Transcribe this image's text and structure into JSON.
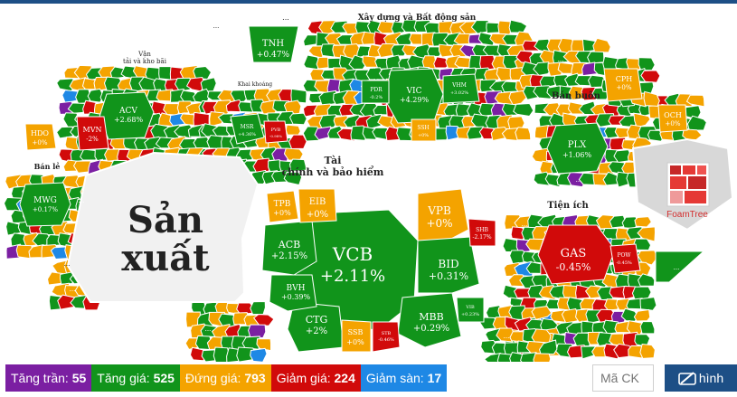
{
  "groups": {
    "xay_dung": "Xây dựng và Bất động sản",
    "van_tai_1": "Vận",
    "van_tai_2": "tải và kho bãi",
    "khai_khoang": "Khai khoáng",
    "ban_buon": "Bán buôn",
    "ban_le": "Bán lẻ",
    "tai_chinh_1": "Tài",
    "tai_chinh_2": "chính và bảo hiểm",
    "tien_ich": "Tiện ích",
    "san_xuat_1": "Sản",
    "san_xuat_2": "xuất"
  },
  "ellipsis": "...",
  "tickers": {
    "vcb": {
      "code": "VCB",
      "change": "+2.11%"
    },
    "vpb": {
      "code": "VPB",
      "change": "+0%"
    },
    "bid": {
      "code": "BID",
      "change": "+0.31%"
    },
    "mbb": {
      "code": "MBB",
      "change": "+0.29%"
    },
    "acb": {
      "code": "ACB",
      "change": "+2.15%"
    },
    "ctg": {
      "code": "CTG",
      "change": "+2%"
    },
    "bvh": {
      "code": "BVH",
      "change": "+0.39%"
    },
    "tpb": {
      "code": "TPB",
      "change": "+0%"
    },
    "eib": {
      "code": "EIB",
      "change": "+0%"
    },
    "ssb": {
      "code": "SSB",
      "change": "+0%"
    },
    "shb": {
      "code": "SHB",
      "change": "-2.17%"
    },
    "stb": {
      "code": "STB",
      "change": "-0.46%"
    },
    "vib": {
      "code": "VIB",
      "change": "+0.23%"
    },
    "gas": {
      "code": "GAS",
      "change": "-0.45%"
    },
    "pow": {
      "code": "POW",
      "change": "-0.45%"
    },
    "plx": {
      "code": "PLX",
      "change": "+1.06%"
    },
    "vic": {
      "code": "VIC",
      "change": "+4.29%"
    },
    "vhm": {
      "code": "VHM",
      "change": "+3.02%"
    },
    "pdr": {
      "code": "PDR",
      "change": "-0.2%"
    },
    "ssh": {
      "code": "SSH",
      "change": "+0%"
    },
    "tnh": {
      "code": "TNH",
      "change": "+0.47%"
    },
    "acv": {
      "code": "ACV",
      "change": "+2.68%"
    },
    "mvn": {
      "code": "MVN",
      "change": "-2%"
    },
    "msr": {
      "code": "MSR",
      "change": "+4.36%"
    },
    "pvb": {
      "code": "PVB",
      "change": "-0.98%"
    },
    "mwg": {
      "code": "MWG",
      "change": "+0.17%"
    },
    "hdo": {
      "code": "HDO",
      "change": "+0%"
    },
    "cph": {
      "code": "CPH",
      "change": "+0%"
    },
    "och": {
      "code": "OCH",
      "change": "+0%"
    }
  },
  "foamtree": "FoamTree",
  "legend": [
    {
      "label": "Tăng trần:",
      "count": "55",
      "color": "#7b1fa2"
    },
    {
      "label": "Tăng giá:",
      "count": "525",
      "color": "#11941b"
    },
    {
      "label": "Đứng giá:",
      "count": "793",
      "color": "#f4a300"
    },
    {
      "label": "Giảm giá:",
      "count": "224",
      "color": "#d10a0a"
    },
    {
      "label": "Giảm sàn:",
      "count": "17",
      "color": "#1e88e5"
    }
  ],
  "search": {
    "placeholder": "Mã CK"
  },
  "hinh_button": "hình",
  "colors": {
    "green": "#11941b",
    "red": "#d10a0a",
    "orange": "#f4a300",
    "purple": "#7b1fa2",
    "blue": "#1e88e5"
  }
}
